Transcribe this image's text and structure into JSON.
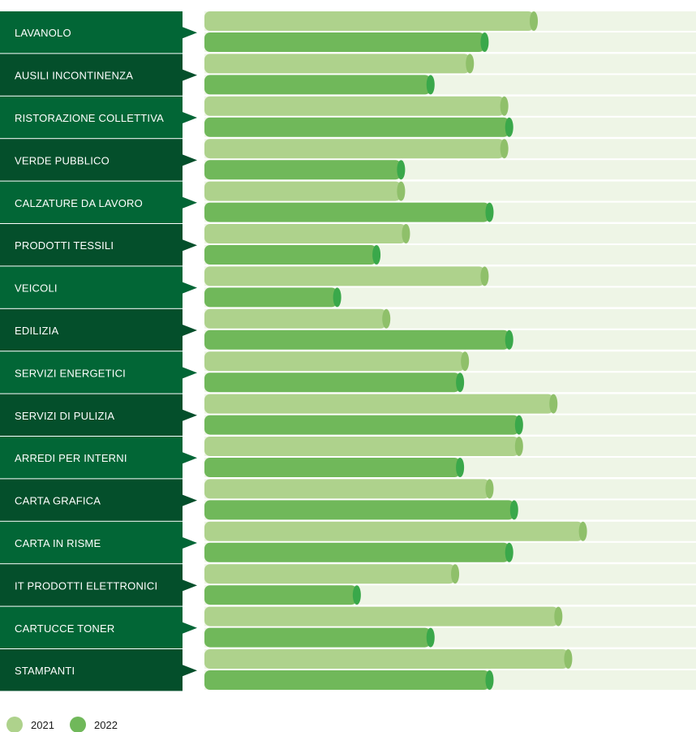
{
  "chart_data": {
    "type": "bar",
    "orientation": "horizontal",
    "categories": [
      "LAVANOLO",
      "AUSILI INCONTINENZA",
      "RISTORAZIONE COLLETTIVA",
      "VERDE PUBBLICO",
      "CALZATURE DA LAVORO",
      "PRODOTTI TESSILI",
      "VEICOLI",
      "EDILIZIA",
      "SERVIZI ENERGETICI",
      "SERVIZI DI PULIZIA",
      "ARREDI PER INTERNI",
      "CARTA GRAFICA",
      "CARTA IN RISME",
      "IT PRODOTTI ELETTRONICI",
      "CARTUCCE TONER",
      "STAMPANTI"
    ],
    "series": [
      {
        "name": "2021",
        "color": "#aed28c",
        "cap_color": "#8fc06a",
        "values": [
          67,
          54,
          61,
          61,
          40,
          41,
          57,
          37,
          53,
          71,
          64,
          58,
          77,
          51,
          72,
          74
        ]
      },
      {
        "name": "2022",
        "color": "#70b85a",
        "cap_color": "#3aa84a",
        "values": [
          57,
          46,
          62,
          40,
          58,
          35,
          27,
          62,
          52,
          64,
          52,
          63,
          62,
          31,
          46,
          58
        ]
      }
    ],
    "xlim": [
      0,
      100
    ],
    "legend": "bottom-left",
    "grid": false,
    "colors": {
      "label_bg_odd": "#026636",
      "label_bg_even": "#044f2b",
      "track": "#eef5e6"
    }
  }
}
